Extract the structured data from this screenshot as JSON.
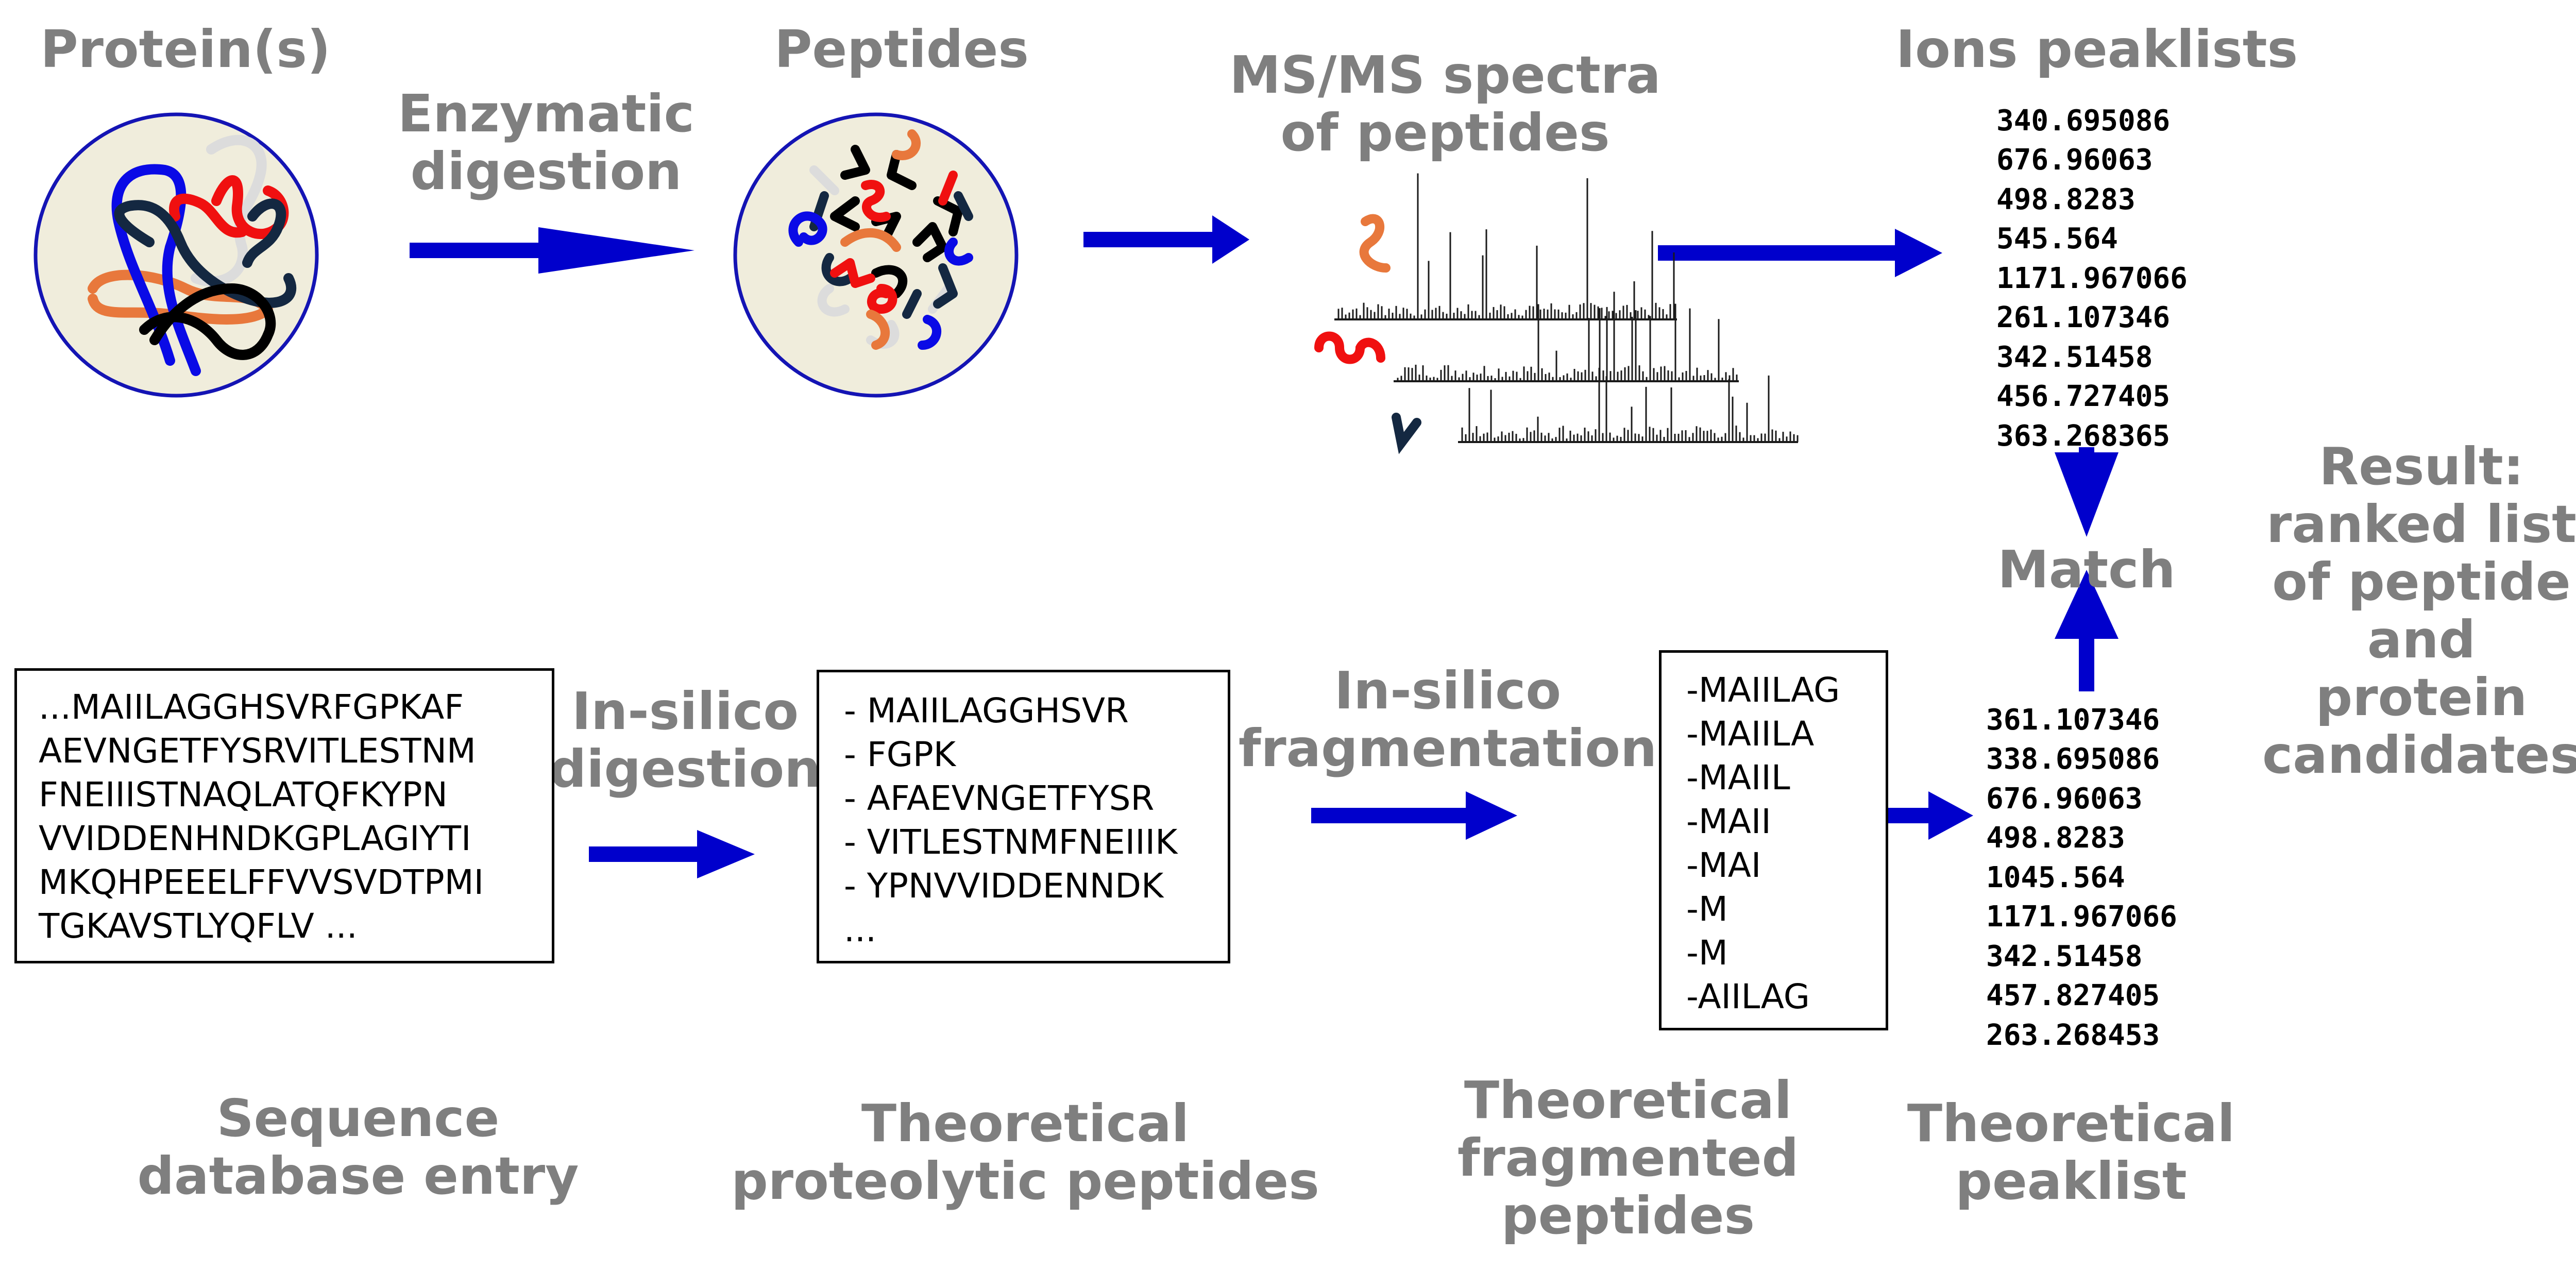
{
  "labels": {
    "proteins": "Protein(s)",
    "enzymatic_digestion": "Enzymatic\ndigestion",
    "peptides": "Peptides",
    "msms_spectra": "MS/MS spectra\nof peptides",
    "ions_peaklists": "Ions peaklists",
    "match": "Match",
    "result": "Result:\nranked list\nof peptide\nand\nprotein\ncandidates",
    "insilico_digestion": "In-silico\ndigestion",
    "insilico_fragmentation": "In-silico\nfragmentation",
    "sequence_db_entry": "Sequence\ndatabase entry",
    "theoretical_proteolytic": "Theoretical\nproteolytic peptides",
    "theoretical_fragmented": "Theoretical\nfragmented\npeptides",
    "theoretical_peaklist": "Theoretical\npeaklist"
  },
  "sequence_entry": [
    "...MAIILAGGHSVRFGPKAF",
    "AEVNGETFYSRVITLESTNM",
    "FNEIIISTNAQLATQFKYPN",
    "VVIDDENHNDKGPLAGIYTI",
    "MKQHPEEELFFVVSVDTPMI",
    "TGKAVSTLYQFLV ..."
  ],
  "proteolytic_peptides": [
    "- MAIILAGGHSVR",
    "- FGPK",
    "- AFAEVNGETFYSR",
    "- VITLESTNMFNEIIIK",
    "- YPNVVIDDENNDK",
    "..."
  ],
  "fragmented_peptides": [
    "-MAIILAG",
    "-MAIILA",
    "-MAIIL",
    "-MAII",
    "-MAI",
    "-M",
    "-M",
    "-AIILAG"
  ],
  "ions_peaklist_values": [
    "340.695086",
    "676.96063",
    "498.8283",
    "545.564",
    "1171.967066",
    "261.107346",
    "342.51458",
    "456.727405",
    "363.268365"
  ],
  "theoretical_peaklist_values": [
    "361.107346",
    "338.695086",
    "676.96063",
    "498.8283",
    "1045.564",
    "1171.967066",
    "342.51458",
    "457.827405",
    "263.268453"
  ],
  "colors": {
    "label_gray": "#7f7f7f",
    "arrow_blue": "#0000cc",
    "circle_fill": "#f0eddc",
    "circle_border": "#1414b4",
    "strand_blue": "#0a0ae6",
    "strand_red": "#f01010",
    "strand_orange": "#e8783c",
    "strand_black": "#000000",
    "strand_navy": "#142841",
    "strand_pale": "#dcdcdc"
  }
}
